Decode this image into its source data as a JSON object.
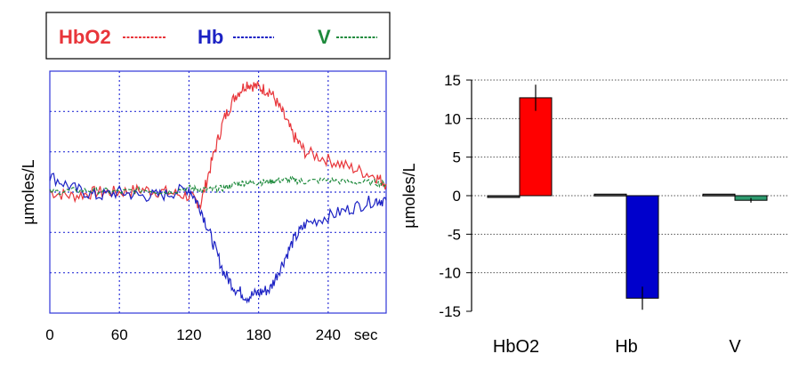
{
  "colors": {
    "hbo2": "#e8353a",
    "hb": "#1c22c4",
    "v": "#1e8a3c",
    "bar_hbo2": "#ff0000",
    "bar_hb": "#0000cc",
    "bar_v": "#2e9a6e",
    "grid_left": "#2f35d8"
  },
  "chart_data": [
    {
      "type": "line",
      "legend": [
        {
          "key": "hbo2",
          "label": "HbO2"
        },
        {
          "key": "hb",
          "label": "Hb"
        },
        {
          "key": "v",
          "label": "V"
        }
      ],
      "legend_position": "top",
      "ylabel": "µmoles/L",
      "xlabel": "",
      "x_unit_label": "sec",
      "x_ticks": [
        0,
        60,
        120,
        180,
        240
      ],
      "xlim": [
        0,
        290
      ],
      "ylim": [
        -15,
        15
      ],
      "grid": true,
      "series": [
        {
          "key": "hbo2",
          "x": [
            0,
            20,
            40,
            60,
            80,
            100,
            120,
            130,
            140,
            150,
            160,
            170,
            180,
            190,
            200,
            210,
            220,
            240,
            260,
            280,
            290
          ],
          "y": [
            0,
            -0.5,
            0,
            0,
            0.3,
            0,
            -0.5,
            -1.5,
            4,
            9,
            12,
            13.5,
            13,
            12.5,
            10,
            7,
            5,
            4,
            3,
            2,
            1
          ]
        },
        {
          "key": "hb",
          "x": [
            0,
            20,
            40,
            60,
            80,
            100,
            120,
            130,
            140,
            150,
            160,
            170,
            180,
            190,
            200,
            210,
            220,
            240,
            260,
            280,
            290
          ],
          "y": [
            2,
            0.5,
            -0.5,
            0,
            -0.5,
            -0.3,
            0.5,
            -2,
            -6,
            -10,
            -12,
            -13,
            -12.5,
            -12,
            -9,
            -6,
            -4,
            -3,
            -2,
            -1,
            -1
          ]
        },
        {
          "key": "v",
          "x": [
            0,
            20,
            40,
            60,
            80,
            100,
            120,
            130,
            140,
            150,
            160,
            170,
            180,
            190,
            200,
            210,
            220,
            240,
            260,
            280,
            290
          ],
          "y": [
            0,
            0.2,
            0.2,
            0,
            0.3,
            0,
            0.5,
            0.3,
            0.3,
            0.5,
            1,
            1.2,
            1.2,
            1.3,
            1.5,
            1.5,
            1.3,
            1.5,
            1.2,
            1.2,
            1
          ]
        }
      ]
    },
    {
      "type": "bar",
      "categories": [
        "HbO2",
        "Hb",
        "V"
      ],
      "ylabel": "µmoles/L",
      "ylim": [
        -15,
        15
      ],
      "y_ticks": [
        15,
        10,
        5,
        0,
        -5,
        -10,
        -15
      ],
      "grid": true,
      "series": [
        {
          "values": [
            -0.2,
            0.2,
            0.2
          ],
          "errors": [
            0,
            0,
            0
          ]
        },
        {
          "values": [
            12.7,
            -13.3,
            -0.6
          ],
          "errors": [
            1.7,
            1.5,
            0.3
          ]
        }
      ]
    }
  ]
}
